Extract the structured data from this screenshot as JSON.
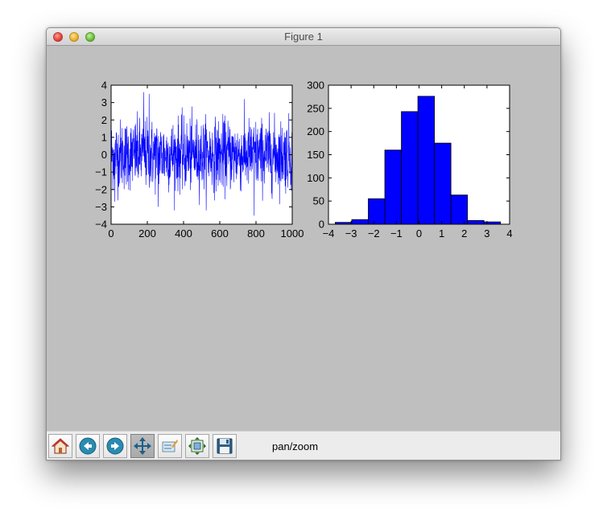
{
  "window": {
    "title": "Figure 1"
  },
  "toolbar": {
    "buttons": [
      {
        "id": "home",
        "icon": "home-icon"
      },
      {
        "id": "back",
        "icon": "back-arrow-icon"
      },
      {
        "id": "forward",
        "icon": "forward-arrow-icon"
      },
      {
        "id": "pan",
        "icon": "pan-move-icon",
        "active": true
      },
      {
        "id": "zoom",
        "icon": "zoom-rect-icon"
      },
      {
        "id": "subplots",
        "icon": "subplots-config-icon"
      },
      {
        "id": "save",
        "icon": "save-floppy-icon"
      }
    ],
    "status": "pan/zoom"
  },
  "chart_data": [
    {
      "type": "line",
      "xlim": [
        0,
        1000
      ],
      "ylim": [
        -4,
        4
      ],
      "x_ticks": [
        "0",
        "200",
        "400",
        "600",
        "800",
        "1000"
      ],
      "y_ticks": [
        "4",
        "3",
        "2",
        "1",
        "0",
        "−1",
        "−2",
        "−3",
        "−4"
      ],
      "series_color": "#0000ff",
      "n_points": 1000,
      "notable_points": [
        [
          180,
          3.6
        ],
        [
          210,
          3.5
        ],
        [
          260,
          -3.0
        ],
        [
          790,
          -3.5
        ],
        [
          20,
          -2.7
        ]
      ],
      "grid": false
    },
    {
      "type": "bar",
      "bin_edges": [
        -3.7,
        -2.97,
        -2.24,
        -1.51,
        -0.78,
        -0.05,
        0.68,
        1.41,
        2.14,
        2.87,
        3.6
      ],
      "values": [
        4,
        10,
        55,
        160,
        243,
        276,
        175,
        63,
        8,
        5
      ],
      "xlim": [
        -4,
        4
      ],
      "ylim": [
        0,
        300
      ],
      "x_ticks": [
        "−4",
        "−3",
        "−2",
        "−1",
        "0",
        "1",
        "2",
        "3",
        "4"
      ],
      "y_ticks": [
        "300",
        "250",
        "200",
        "150",
        "100",
        "50",
        "0"
      ],
      "bar_color": "#0000ff",
      "grid": false
    }
  ]
}
